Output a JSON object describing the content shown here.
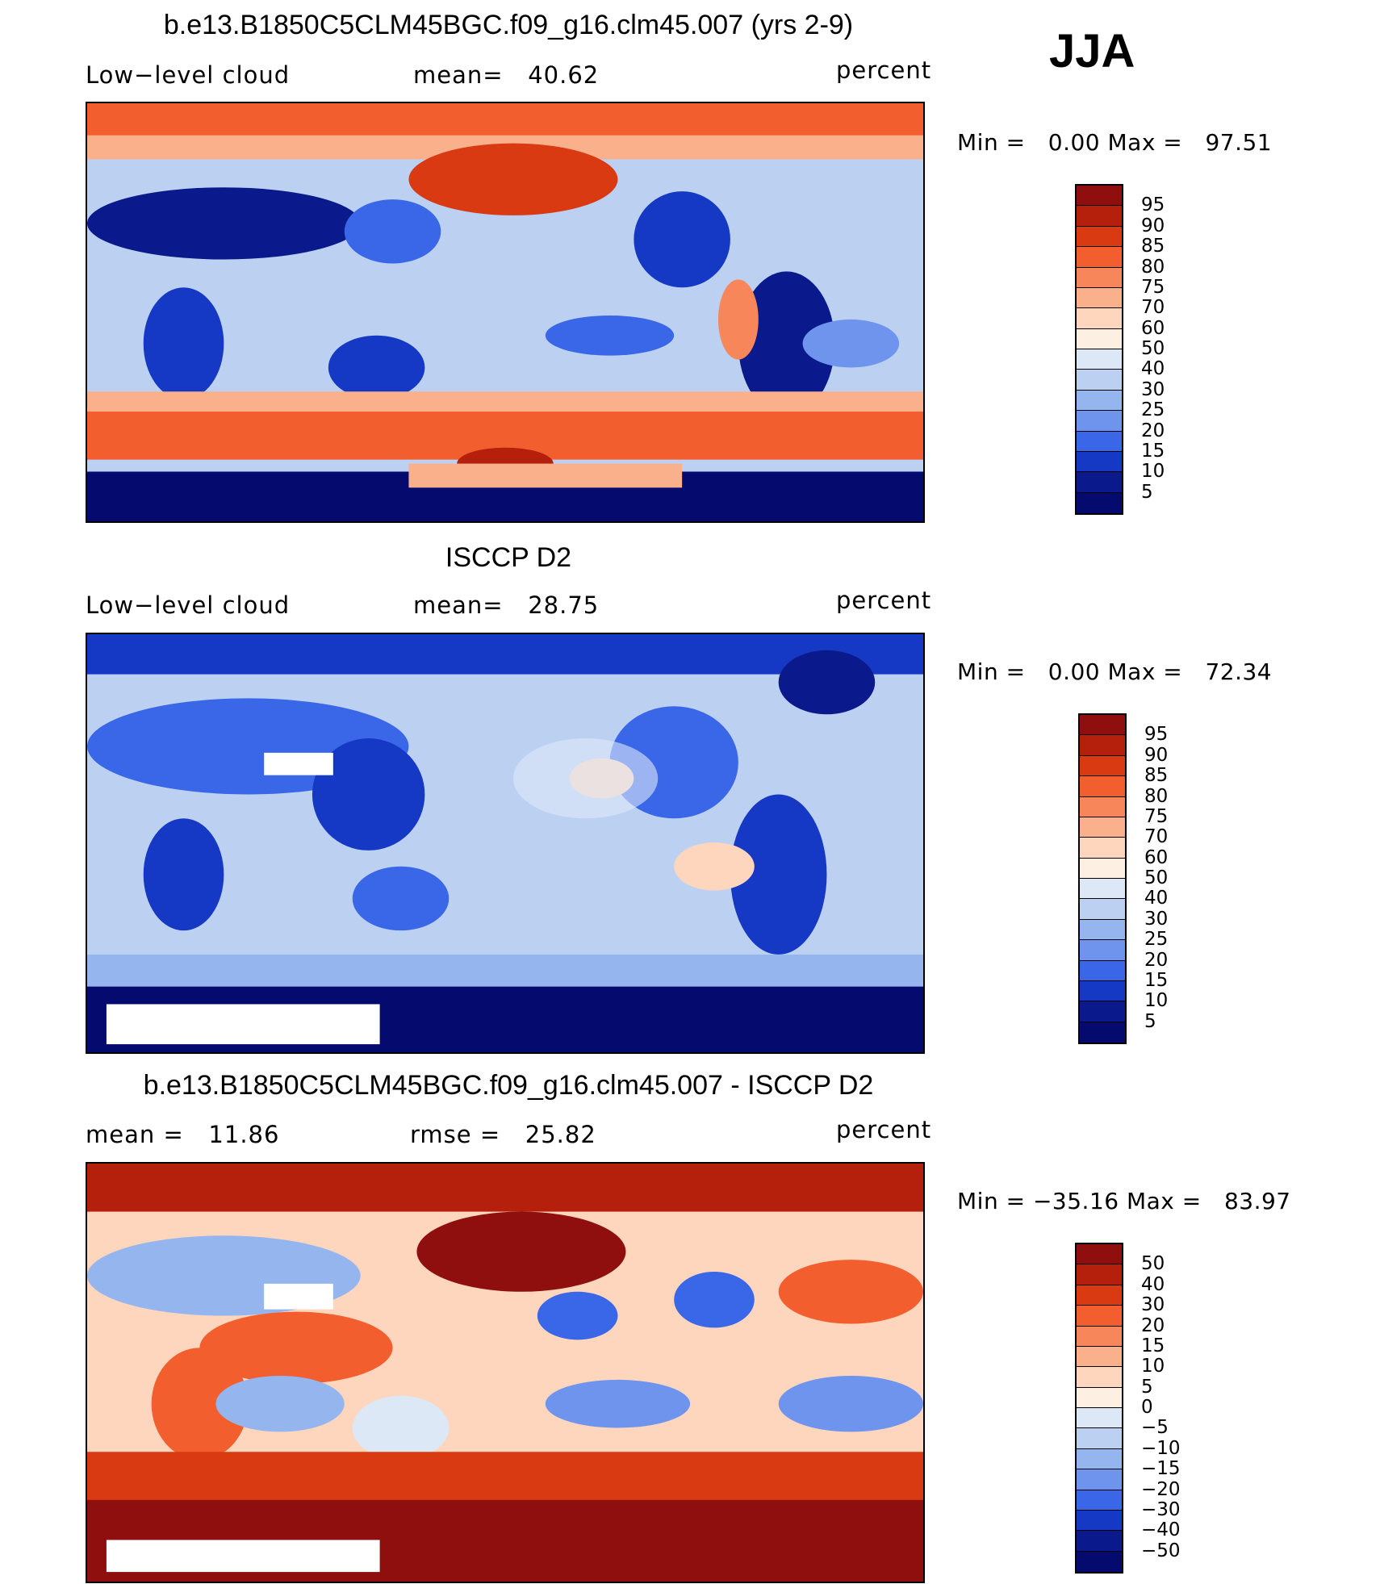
{
  "season": "JJA",
  "panels": [
    {
      "title": "b.e13.B1850C5CLM45BGC.f09_g16.clm45.007 (yrs 2-9)",
      "left_label": "Low−level cloud",
      "center_label": "mean=   40.62",
      "units": "percent",
      "min_label": "Min =",
      "min_value": "0.00",
      "max_label": "Max =",
      "max_value": "97.51",
      "colorbar_labels": [
        "95",
        "90",
        "85",
        "80",
        "75",
        "70",
        "60",
        "50",
        "40",
        "30",
        "25",
        "20",
        "15",
        "10",
        "5"
      ]
    },
    {
      "title": "ISCCP D2",
      "left_label": "Low−level cloud",
      "center_label": "mean=   28.75",
      "units": "percent",
      "min_label": "Min =",
      "min_value": "0.00",
      "max_label": "Max =",
      "max_value": "72.34",
      "colorbar_labels": [
        "95",
        "90",
        "85",
        "80",
        "75",
        "70",
        "60",
        "50",
        "40",
        "30",
        "25",
        "20",
        "15",
        "10",
        "5"
      ]
    },
    {
      "title": "b.e13.B1850C5CLM45BGC.f09_g16.clm45.007 - ISCCP D2",
      "left_label": "mean =   11.86",
      "center_label": "rmse =   25.82",
      "units": "percent",
      "min_label": "Min =",
      "min_value": "−35.16",
      "max_label": "Max =",
      "max_value": "83.97",
      "colorbar_labels": [
        "50",
        "40",
        "30",
        "20",
        "15",
        "10",
        "5",
        "0",
        "−5",
        "−10",
        "−15",
        "−20",
        "−30",
        "−40",
        "−50"
      ]
    }
  ],
  "colors": {
    "palette_top_to_bottom": [
      "#8f0f0f",
      "#b5200d",
      "#d93a12",
      "#f35e2e",
      "#f7865b",
      "#fbb08c",
      "#fdd6bd",
      "#fdf0e3",
      "#dde8f7",
      "#bcd1f2",
      "#95b5ef",
      "#6e94ee",
      "#3a66e8",
      "#1539c4",
      "#0a1a8c",
      "#050a6e"
    ]
  }
}
